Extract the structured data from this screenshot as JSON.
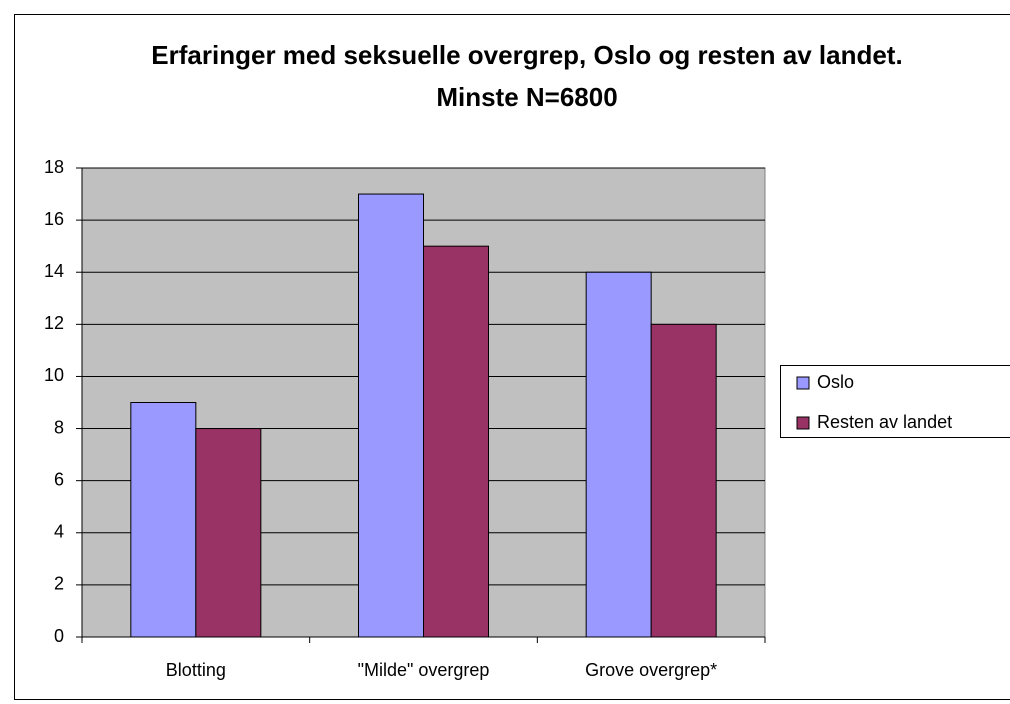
{
  "chart_data": {
    "type": "bar",
    "title": "Erfaringer med seksuelle overgrep, Oslo og resten av landet. Minste N=6800",
    "categories": [
      "Blotting",
      "\"Milde\" overgrep",
      "Grove overgrep*"
    ],
    "series": [
      {
        "name": "Oslo",
        "color": "#9999ff",
        "values": [
          9,
          17,
          14
        ]
      },
      {
        "name": "Resten av landet",
        "color": "#993366",
        "values": [
          8,
          15,
          12
        ]
      }
    ],
    "ylim": [
      0,
      18
    ],
    "yticks": [
      0,
      2,
      4,
      6,
      8,
      10,
      12,
      14,
      16,
      18
    ],
    "grid": true,
    "legend": "right",
    "plot_background": "#c0c0c0"
  }
}
